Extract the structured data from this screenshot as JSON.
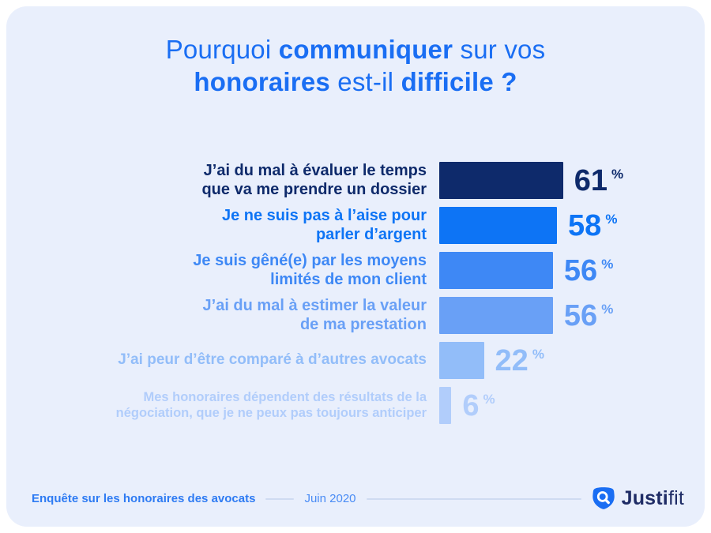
{
  "header": {
    "line1": [
      {
        "text": "Pourquoi ",
        "bold": false
      },
      {
        "text": "communiquer",
        "bold": true
      },
      {
        "text": " sur vos",
        "bold": false
      }
    ],
    "line2": [
      {
        "text": "honoraires",
        "bold": true
      },
      {
        "text": " est-il ",
        "bold": false
      },
      {
        "text": "difficile ?",
        "bold": true
      }
    ]
  },
  "chart_data": {
    "type": "bar",
    "orientation": "horizontal",
    "title": "Pourquoi communiquer sur vos honoraires est-il difficile ?",
    "unit": "%",
    "xlim": [
      0,
      100
    ],
    "legend": "none",
    "grid": false,
    "categories": [
      "J’ai du mal à évaluer le temps\nque va me prendre un dossier",
      "Je ne suis pas à l’aise pour\nparler d’argent",
      "Je suis gêné(e) par les moyens\nlimités de mon client",
      "J’ai du mal à estimer la valeur\nde ma prestation",
      "J’ai peur d’être comparé à d’autres avocats",
      "Mes honoraires dépendent des résultats de la\nnégociation, que je ne peux pas toujours anticiper"
    ],
    "values": [
      61,
      58,
      56,
      56,
      22,
      6
    ],
    "colors": [
      "#0e2a6b",
      "#0d74f5",
      "#3e88f5",
      "#69a0f6",
      "#92bdf9",
      "#b1cdfb"
    ],
    "accent_title_color": "#1a6ef3",
    "card_background": "#e9effc"
  },
  "footer": {
    "source": "Enquête sur les honoraires des avocats",
    "date": "Juin 2020",
    "brand_bold": "Justi",
    "brand_light": "fit",
    "brand_color": "#1f2c66",
    "brand_icon_color": "#1a6ef3"
  }
}
